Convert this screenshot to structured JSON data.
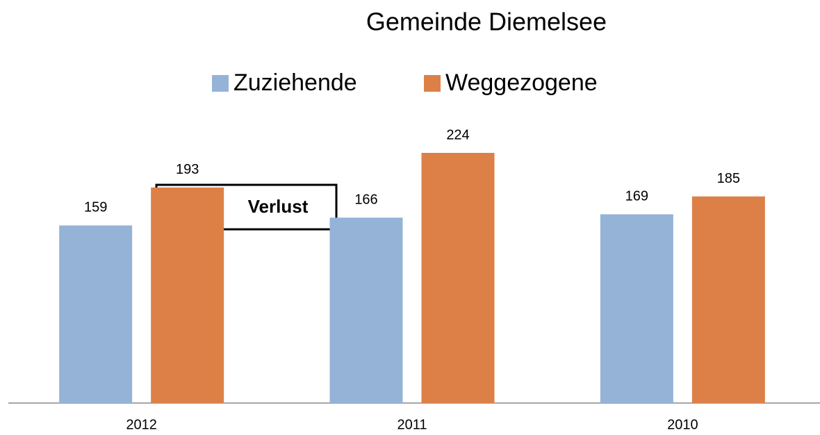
{
  "chart_data": {
    "type": "bar",
    "title": "Gemeinde Diemelsee",
    "categories": [
      "2012",
      "2011",
      "2010"
    ],
    "series": [
      {
        "name": "Zuziehende",
        "color": "#95b3d7",
        "values": [
          159,
          166,
          169
        ]
      },
      {
        "name": "Weggezogene",
        "color": "#dd8047",
        "values": [
          193,
          224,
          185
        ]
      }
    ],
    "annotation": "Verlust",
    "legend": "top"
  }
}
